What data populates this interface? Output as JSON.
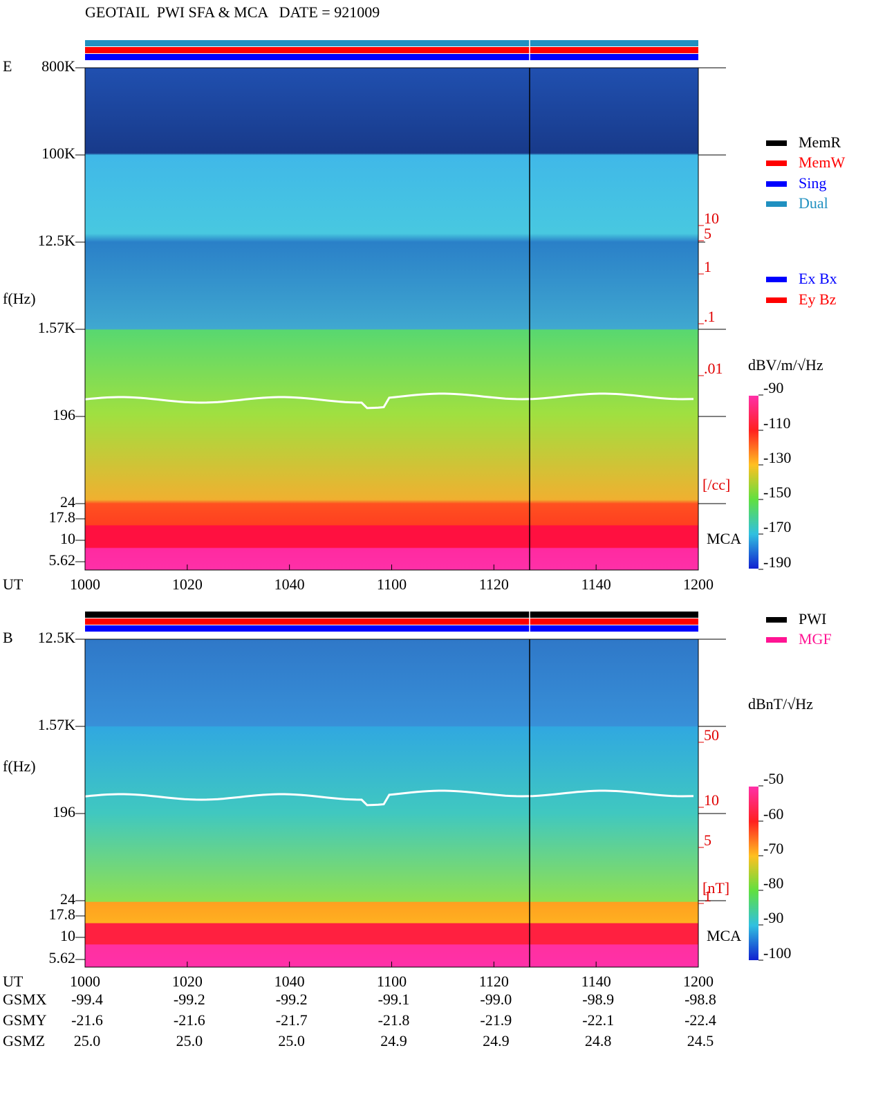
{
  "title": "GEOTAIL  PWI SFA & MCA   DATE = 921009",
  "panels": [
    {
      "label": "E",
      "ylabel": "f(Hz)",
      "yticks": [
        "800K",
        "100K",
        "12.5K",
        "1.57K",
        "196",
        "24",
        "17.8",
        "10",
        "5.62"
      ],
      "density_ticks": [
        "10",
        "5",
        "1",
        ".1",
        ".01"
      ],
      "density_unit": "[/cc]",
      "mca": "MCA",
      "xlabel": "UT",
      "xticks": [
        "1000",
        "1020",
        "1040",
        "1100",
        "1120",
        "1140",
        "1200"
      ],
      "colorbar_unit": "dBV/m/√Hz",
      "colorbar_ticks": [
        "-90",
        "-110",
        "-130",
        "-150",
        "-170",
        "-190"
      ]
    },
    {
      "label": "B",
      "ylabel": "f(Hz)",
      "yticks": [
        "12.5K",
        "1.57K",
        "196",
        "24",
        "17.8",
        "10",
        "5.62"
      ],
      "density_ticks": [
        "50",
        "10",
        "5",
        "1"
      ],
      "density_unit": "[nT]",
      "mca": "MCA",
      "xlabel": "UT",
      "xticks": [
        "1000",
        "1020",
        "1040",
        "1100",
        "1120",
        "1140",
        "1200"
      ],
      "colorbar_unit": "dBnT/√Hz",
      "colorbar_ticks": [
        "-50",
        "-60",
        "-70",
        "-80",
        "-90",
        "-100"
      ]
    }
  ],
  "legend_memory": [
    "MemR",
    "MemW",
    "Sing",
    "Dual"
  ],
  "legend_antenna": [
    "Ex Bx",
    "Ey Bz"
  ],
  "legend_source": [
    "PWI",
    "MGF"
  ],
  "orbit": {
    "rows": [
      {
        "label": "GSMX",
        "values": [
          "-99.4",
          "-99.2",
          "-99.2",
          "-99.1",
          "-99.0",
          "-98.9",
          "-98.8"
        ]
      },
      {
        "label": "GSMY",
        "values": [
          "-21.6",
          "-21.6",
          "-21.7",
          "-21.8",
          "-21.9",
          "-22.1",
          "-22.4"
        ]
      },
      {
        "label": "GSMZ",
        "values": [
          "25.0",
          "25.0",
          "25.0",
          "24.9",
          "24.9",
          "24.8",
          "24.5"
        ]
      }
    ]
  }
}
